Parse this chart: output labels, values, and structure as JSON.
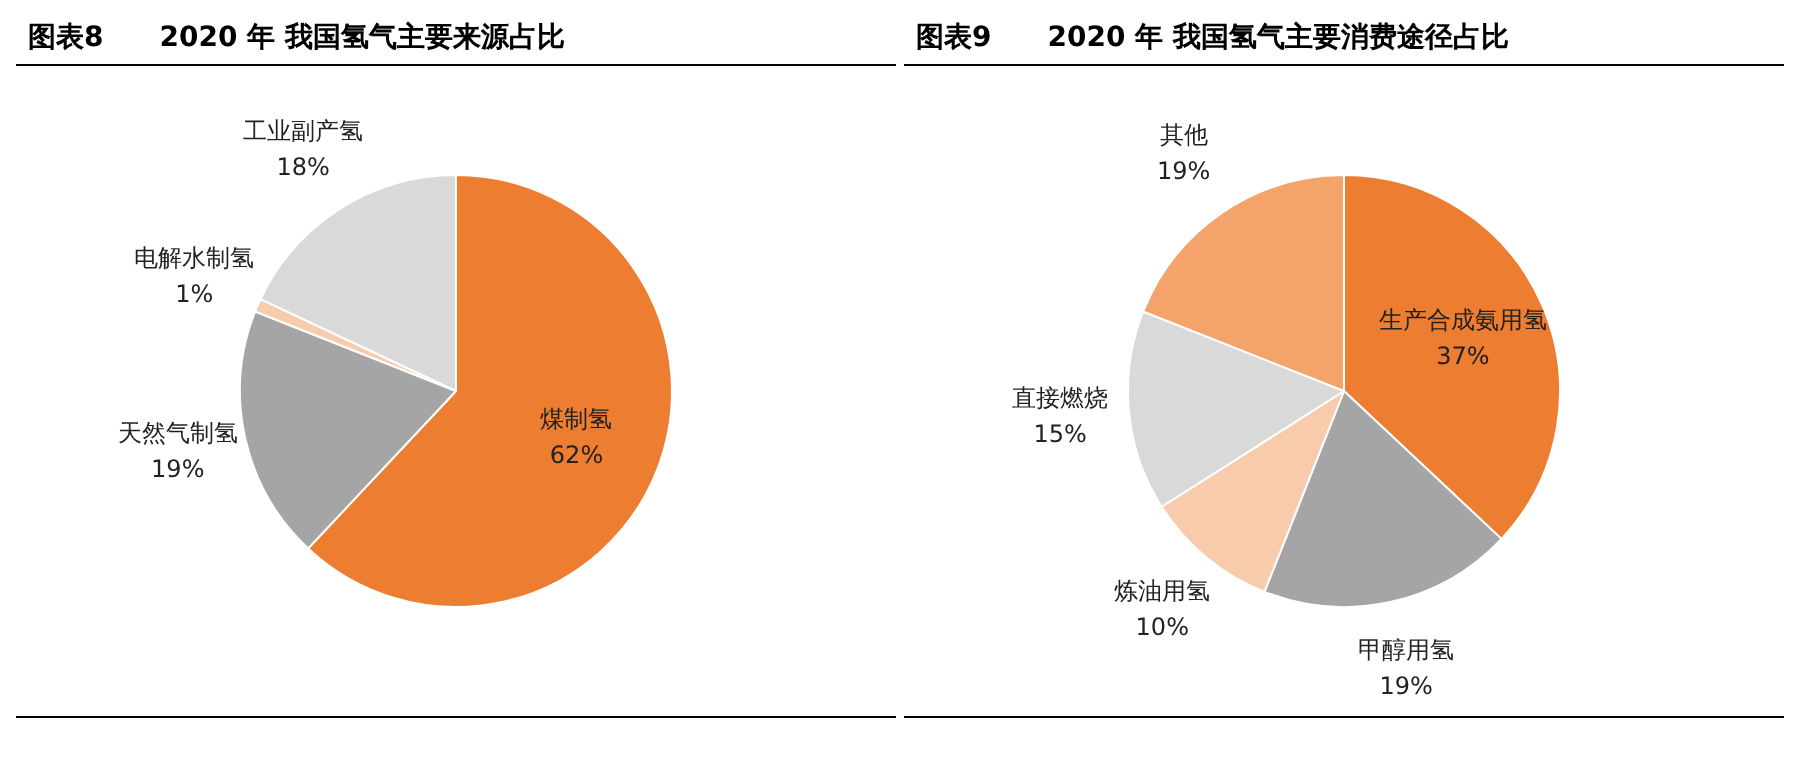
{
  "chart_data": [
    {
      "type": "pie",
      "title": "图表8　　2020 年 我国氢气主要来源占比",
      "categories": [
        "煤制氢",
        "天然气制氢",
        "电解水制氢",
        "工业副产氢"
      ],
      "values": [
        62,
        19,
        1,
        18
      ],
      "colors": [
        "#ed7d31",
        "#a5a5a5",
        "#f8cbad",
        "#d9d9d9"
      ],
      "value_labels": [
        "62%",
        "19%",
        "1%",
        "18%"
      ],
      "legend": false
    },
    {
      "type": "pie",
      "title": "图表9　　2020 年 我国氢气主要消费途径占比",
      "categories": [
        "生产合成氨用氢",
        "甲醇用氢",
        "炼油用氢",
        "直接燃烧",
        "其他"
      ],
      "values": [
        37,
        19,
        10,
        15,
        19
      ],
      "colors": [
        "#ed7d31",
        "#a5a5a5",
        "#f8cbad",
        "#d9d9d9",
        "#f4a46a"
      ],
      "value_labels": [
        "37%",
        "19%",
        "10%",
        "15%",
        "19%"
      ],
      "legend": false
    }
  ]
}
